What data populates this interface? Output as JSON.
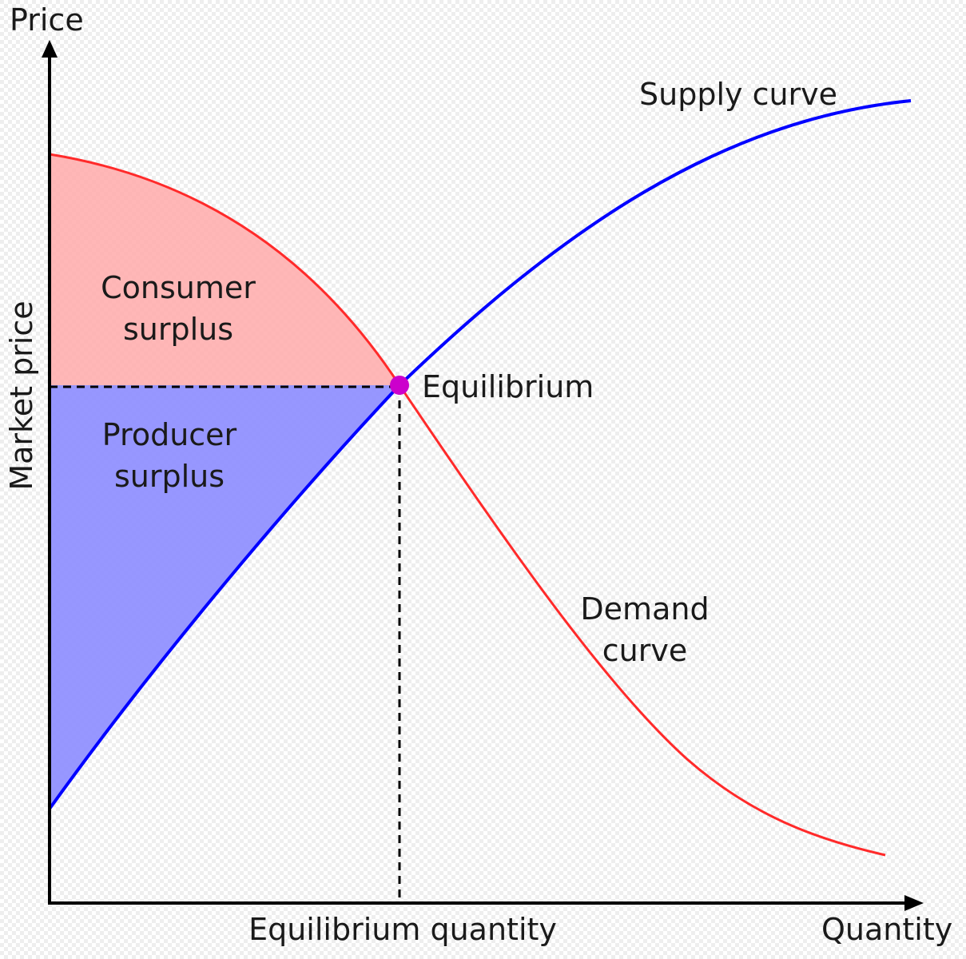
{
  "axes": {
    "y_axis_label": "Price",
    "x_axis_label": "Quantity",
    "y_side_label": "Market price",
    "x_bottom_label": "Equilibrium quantity"
  },
  "regions": {
    "consumer_surplus": {
      "line1": "Consumer",
      "line2": "surplus",
      "color": "#ffaaaa"
    },
    "producer_surplus": {
      "line1": "Producer",
      "line2": "surplus",
      "color": "#8c8cff"
    }
  },
  "curves": {
    "supply": {
      "label": "Supply curve",
      "color": "#0000ff"
    },
    "demand": {
      "line1": "Demand",
      "line2": "curve",
      "color": "#ff2a2a"
    }
  },
  "equilibrium": {
    "label": "Equilibrium",
    "color": "#cc00cc"
  }
}
